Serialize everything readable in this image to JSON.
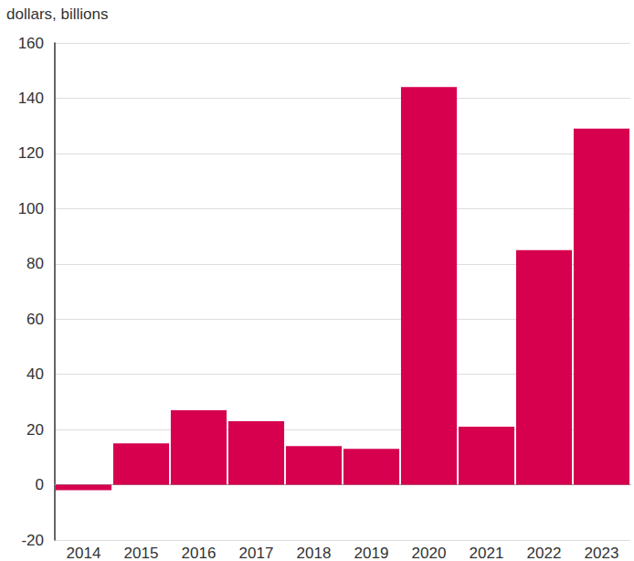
{
  "chart_data": {
    "type": "bar",
    "ylabel": "dollars, billions",
    "categories": [
      "2014",
      "2015",
      "2016",
      "2017",
      "2018",
      "2019",
      "2020",
      "2021",
      "2022",
      "2023"
    ],
    "values": [
      -2,
      15,
      27,
      23,
      14,
      13,
      144,
      21,
      85,
      129
    ],
    "color": "#d6004f",
    "ylim": [
      -20,
      160
    ],
    "yticks": [
      -20,
      0,
      20,
      40,
      60,
      80,
      100,
      120,
      140,
      160
    ],
    "grid": true
  }
}
